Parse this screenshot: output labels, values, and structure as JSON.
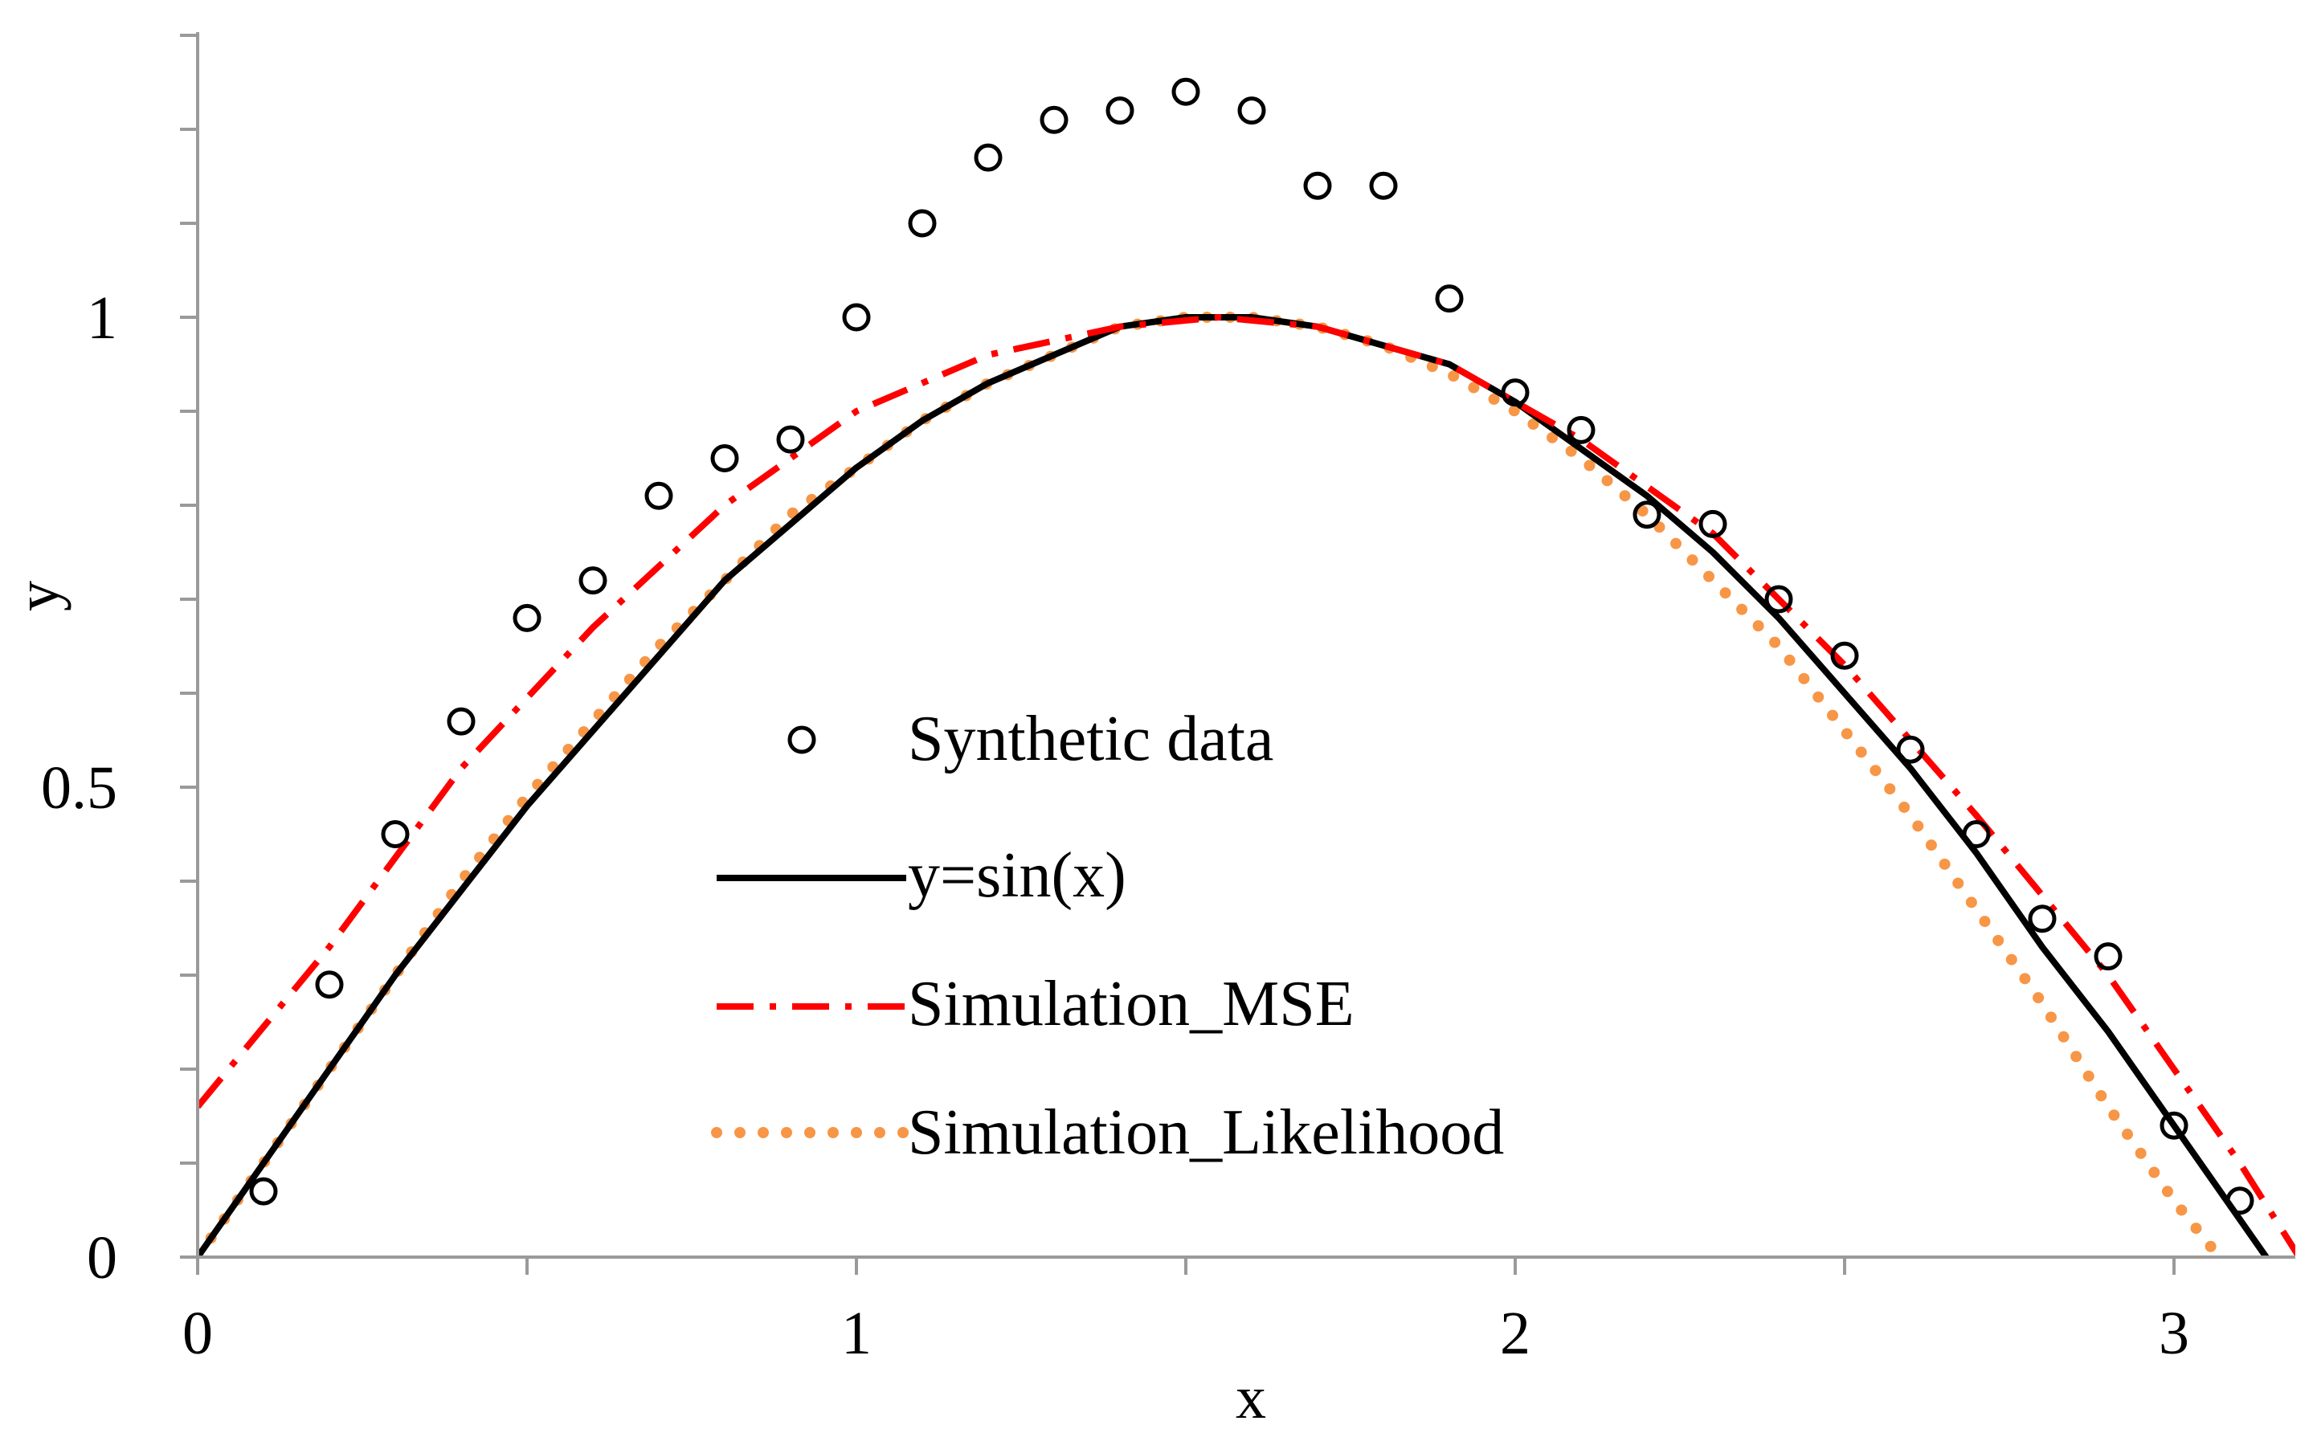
{
  "colors": {
    "axis": "#9a9a9a",
    "data_marker": "#000000",
    "sin": "#000000",
    "mse": "#ff0000",
    "likelihood": "#f79646"
  },
  "chart_data": {
    "type": "line",
    "title": "",
    "xlabel": "x",
    "ylabel": "y",
    "xlim": [
      0,
      3.2
    ],
    "ylim": [
      0,
      1.3
    ],
    "x_ticks": [
      0,
      1,
      2,
      3
    ],
    "x_tick_labels": [
      "0",
      "1",
      "2",
      "3"
    ],
    "y_ticks": [
      0,
      0.5,
      1
    ],
    "y_tick_labels": [
      "0",
      "0.5",
      "1"
    ],
    "grid": false,
    "legend_position": "center",
    "series": [
      {
        "name": "Synthetic data",
        "style": "open-circle-markers",
        "x": [
          0.1,
          0.2,
          0.3,
          0.4,
          0.5,
          0.6,
          0.7,
          0.8,
          0.9,
          1.0,
          1.1,
          1.2,
          1.3,
          1.4,
          1.5,
          1.6,
          1.7,
          1.8,
          1.9,
          2.0,
          2.1,
          2.2,
          2.3,
          2.4,
          2.5,
          2.6,
          2.7,
          2.8,
          2.9,
          3.0,
          3.1
        ],
        "y": [
          0.07,
          0.29,
          0.45,
          0.57,
          0.68,
          0.72,
          0.81,
          0.85,
          0.87,
          1.0,
          1.1,
          1.17,
          1.21,
          1.22,
          1.24,
          1.22,
          1.14,
          1.14,
          1.02,
          0.92,
          0.88,
          0.79,
          0.78,
          0.7,
          0.64,
          0.54,
          0.45,
          0.36,
          0.32,
          0.14,
          0.06
        ]
      },
      {
        "name": "y=sin(x)",
        "style": "solid",
        "x": [
          0,
          0.1,
          0.2,
          0.3,
          0.4,
          0.5,
          0.6,
          0.7,
          0.8,
          0.9,
          1.0,
          1.1,
          1.2,
          1.3,
          1.4,
          1.5,
          1.6,
          1.7,
          1.8,
          1.9,
          2.0,
          2.1,
          2.2,
          2.3,
          2.4,
          2.5,
          2.6,
          2.7,
          2.8,
          2.9,
          3.0,
          3.1,
          3.15
        ],
        "y": [
          0,
          0.1,
          0.2,
          0.3,
          0.39,
          0.48,
          0.56,
          0.64,
          0.72,
          0.78,
          0.84,
          0.89,
          0.93,
          0.96,
          0.99,
          1.0,
          1.0,
          0.99,
          0.97,
          0.95,
          0.91,
          0.86,
          0.81,
          0.75,
          0.68,
          0.6,
          0.52,
          0.43,
          0.33,
          0.24,
          0.14,
          0.04,
          -0.01
        ]
      },
      {
        "name": "Simulation_MSE",
        "style": "dash-dot",
        "x": [
          0,
          0.2,
          0.4,
          0.6,
          0.8,
          1.0,
          1.2,
          1.4,
          1.55,
          1.7,
          1.9,
          2.1,
          2.3,
          2.5,
          2.7,
          2.9,
          3.0,
          3.1,
          3.19
        ],
        "y": [
          0.16,
          0.33,
          0.52,
          0.67,
          0.8,
          0.9,
          0.96,
          0.99,
          1.0,
          0.99,
          0.95,
          0.87,
          0.77,
          0.63,
          0.47,
          0.3,
          0.2,
          0.1,
          0.0
        ]
      },
      {
        "name": "Simulation_Likelihood",
        "style": "dotted",
        "x": [
          0,
          0.1,
          0.2,
          0.3,
          0.4,
          0.5,
          0.6,
          0.7,
          0.8,
          0.9,
          1.0,
          1.1,
          1.2,
          1.3,
          1.4,
          1.5,
          1.6,
          1.7,
          1.8,
          1.9,
          2.0,
          2.1,
          2.2,
          2.3,
          2.4,
          2.5,
          2.6,
          2.7,
          2.8,
          2.9,
          3.0,
          3.08
        ],
        "y": [
          0,
          0.1,
          0.2,
          0.3,
          0.4,
          0.49,
          0.57,
          0.65,
          0.72,
          0.79,
          0.84,
          0.89,
          0.93,
          0.96,
          0.99,
          1.0,
          1.0,
          0.99,
          0.97,
          0.94,
          0.9,
          0.85,
          0.79,
          0.72,
          0.65,
          0.56,
          0.47,
          0.37,
          0.27,
          0.16,
          0.06,
          -0.01
        ]
      }
    ]
  }
}
